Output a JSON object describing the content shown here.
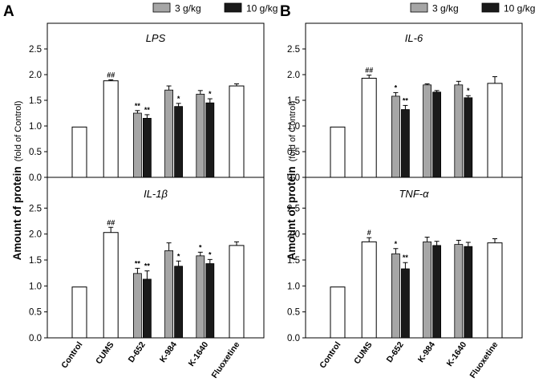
{
  "figure": {
    "panel_letters": [
      "A",
      "B"
    ],
    "ylabel_bold": "Amount of protein",
    "ylabel_normal": "(fold of Control)",
    "legend": {
      "series": [
        {
          "name": "3 g/kg",
          "color": "#a6a6a6"
        },
        {
          "name": "10 g/kg",
          "color": "#1a1a1a"
        }
      ]
    },
    "control_bar_color": "#ffffff",
    "bar_outline_color": "#000000"
  },
  "chart_data": [
    {
      "type": "bar",
      "panel": "A",
      "title": "LPS",
      "ylim": [
        0,
        3.0
      ],
      "yticks": [
        "0.0",
        "0.5",
        "1.0",
        "1.5",
        "2.0",
        "2.5"
      ],
      "categories": [
        "Control",
        "CUMS",
        "D-652",
        "K-984",
        "K-1640",
        "Fluoxetine"
      ],
      "single": {
        "Control": {
          "value": 0.98,
          "err": 0.0
        },
        "CUMS": {
          "value": 1.88,
          "err": 0.02,
          "label": "##"
        },
        "Fluoxetine": {
          "value": 1.78,
          "err": 0.04
        }
      },
      "series": [
        {
          "name": "3 g/kg",
          "values": [
            null,
            null,
            1.25,
            1.7,
            1.62,
            null
          ],
          "errors": [
            null,
            null,
            0.05,
            0.08,
            0.07,
            null
          ],
          "labels": [
            "",
            "",
            "**",
            "",
            "",
            ""
          ]
        },
        {
          "name": "10 g/kg",
          "values": [
            null,
            null,
            1.15,
            1.38,
            1.45,
            null
          ],
          "errors": [
            null,
            null,
            0.07,
            0.06,
            0.08,
            null
          ],
          "labels": [
            "",
            "",
            "**",
            "*",
            "*",
            ""
          ]
        }
      ]
    },
    {
      "type": "bar",
      "panel": "A",
      "title": "IL-1",
      "title_suffix": "β",
      "ylim": [
        0,
        3.0
      ],
      "yticks": [
        "0.0",
        "0.5",
        "1.0",
        "1.5",
        "2.0",
        "2.5"
      ],
      "categories": [
        "Control",
        "CUMS",
        "D-652",
        "K-984",
        "K-1640",
        "Fluoxetine"
      ],
      "single": {
        "Control": {
          "value": 0.98,
          "err": 0.0
        },
        "CUMS": {
          "value": 2.03,
          "err": 0.1,
          "label": "##"
        },
        "Fluoxetine": {
          "value": 1.78,
          "err": 0.07
        }
      },
      "series": [
        {
          "name": "3 g/kg",
          "values": [
            null,
            null,
            1.24,
            1.68,
            1.58,
            null
          ],
          "errors": [
            null,
            null,
            0.1,
            0.15,
            0.07,
            null
          ],
          "labels": [
            "",
            "",
            "**",
            "",
            "*",
            ""
          ]
        },
        {
          "name": "10 g/kg",
          "values": [
            null,
            null,
            1.13,
            1.38,
            1.43,
            null
          ],
          "errors": [
            null,
            null,
            0.16,
            0.1,
            0.08,
            null
          ],
          "labels": [
            "",
            "",
            "**",
            "*",
            "*",
            ""
          ]
        }
      ]
    },
    {
      "type": "bar",
      "panel": "B",
      "title": "IL-6",
      "ylim": [
        0,
        3.0
      ],
      "yticks": [
        "0.0",
        "0.5",
        "1.0",
        "1.5",
        "2.0",
        "2.5"
      ],
      "categories": [
        "Control",
        "CUMS",
        "D-652",
        "K-984",
        "K-1640",
        "Fluoxetine"
      ],
      "single": {
        "Control": {
          "value": 0.98,
          "err": 0.0
        },
        "CUMS": {
          "value": 1.93,
          "err": 0.06,
          "label": "##"
        },
        "Fluoxetine": {
          "value": 1.83,
          "err": 0.13
        }
      },
      "series": [
        {
          "name": "3 g/kg",
          "values": [
            null,
            null,
            1.58,
            1.8,
            1.8,
            null
          ],
          "errors": [
            null,
            null,
            0.07,
            0.02,
            0.07,
            null
          ],
          "labels": [
            "",
            "",
            "*",
            "",
            "",
            ""
          ]
        },
        {
          "name": "10 g/kg",
          "values": [
            null,
            null,
            1.32,
            1.66,
            1.55,
            null
          ],
          "errors": [
            null,
            null,
            0.08,
            0.03,
            0.04,
            null
          ],
          "labels": [
            "",
            "",
            "**",
            "",
            "*",
            ""
          ]
        }
      ]
    },
    {
      "type": "bar",
      "panel": "B",
      "title": "TNF-",
      "title_suffix": "α",
      "ylim": [
        0,
        3.0
      ],
      "yticks": [
        "0.0",
        "0.5",
        "1.0",
        "1.5",
        "2.0",
        "2.5"
      ],
      "categories": [
        "Control",
        "CUMS",
        "D-652",
        "K-984",
        "K-1640",
        "Fluoxetine"
      ],
      "single": {
        "Control": {
          "value": 0.98,
          "err": 0.0
        },
        "CUMS": {
          "value": 1.85,
          "err": 0.08,
          "label": "#"
        },
        "Fluoxetine": {
          "value": 1.83,
          "err": 0.08
        }
      },
      "series": [
        {
          "name": "3 g/kg",
          "values": [
            null,
            null,
            1.62,
            1.85,
            1.8,
            null
          ],
          "errors": [
            null,
            null,
            0.1,
            0.09,
            0.08,
            null
          ],
          "labels": [
            "",
            "",
            "*",
            "",
            "",
            ""
          ]
        },
        {
          "name": "10 g/kg",
          "values": [
            null,
            null,
            1.33,
            1.78,
            1.76,
            null
          ],
          "errors": [
            null,
            null,
            0.12,
            0.08,
            0.08,
            null
          ],
          "labels": [
            "",
            "",
            "**",
            "",
            "",
            ""
          ]
        }
      ]
    }
  ]
}
